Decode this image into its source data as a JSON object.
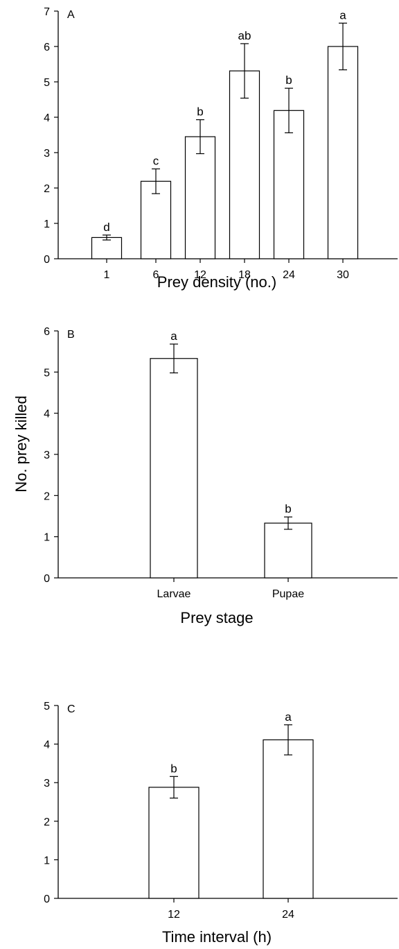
{
  "figure": {
    "shared_ylabel": "No. prey killed"
  },
  "chart_data": [
    {
      "type": "bar",
      "panel_label": "A",
      "categories": [
        "1",
        "6",
        "12",
        "18",
        "24",
        "30"
      ],
      "values": [
        0.6,
        2.19,
        3.45,
        5.31,
        4.19,
        6.0
      ],
      "error": [
        0.07,
        0.35,
        0.48,
        0.77,
        0.63,
        0.66
      ],
      "letters": [
        "d",
        "c",
        "b",
        "ab",
        "b",
        "a"
      ],
      "xlabel": "Prey density (no.)",
      "ylim": [
        0,
        7
      ],
      "yticks": [
        0,
        1,
        2,
        3,
        4,
        5,
        6,
        7
      ],
      "grid": false,
      "bar_color": "#ffffff",
      "edge_color": "#000000"
    },
    {
      "type": "bar",
      "panel_label": "B",
      "categories": [
        "Larvae",
        "Pupae"
      ],
      "values": [
        5.33,
        1.33
      ],
      "error": [
        0.35,
        0.15
      ],
      "letters": [
        "a",
        "b"
      ],
      "xlabel": "Prey stage",
      "ylim": [
        0,
        6
      ],
      "yticks": [
        0,
        1,
        2,
        3,
        4,
        5,
        6
      ],
      "grid": false,
      "bar_color": "#ffffff",
      "edge_color": "#000000"
    },
    {
      "type": "bar",
      "panel_label": "C",
      "categories": [
        "12",
        "24"
      ],
      "values": [
        2.88,
        4.11
      ],
      "error": [
        0.28,
        0.39
      ],
      "letters": [
        "b",
        "a"
      ],
      "xlabel": "Time interval (h)",
      "ylim": [
        0,
        5
      ],
      "yticks": [
        0,
        1,
        2,
        3,
        4,
        5
      ],
      "grid": false,
      "bar_color": "#ffffff",
      "edge_color": "#000000"
    }
  ]
}
